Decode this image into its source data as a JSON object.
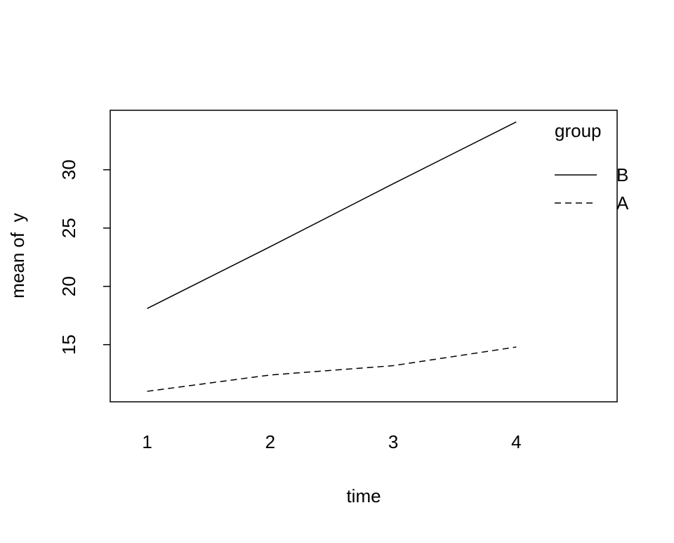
{
  "chart_data": {
    "type": "line",
    "xlabel": "time",
    "ylabel": "mean of  y",
    "x": [
      1,
      2,
      3,
      4
    ],
    "xlim": [
      0.7,
      4.82
    ],
    "ylim": [
      10.1,
      35.1
    ],
    "yticks": [
      15,
      20,
      25,
      30
    ],
    "legend_title": "group",
    "legend": "upper right",
    "series": [
      {
        "name": "B",
        "color": "#000000",
        "linestyle": "solid",
        "values": [
          18.1,
          23.4,
          28.8,
          34.1
        ]
      },
      {
        "name": "A",
        "color": "#000000",
        "linestyle": "dashed",
        "values": [
          11.0,
          12.4,
          13.2,
          14.8
        ]
      }
    ]
  }
}
